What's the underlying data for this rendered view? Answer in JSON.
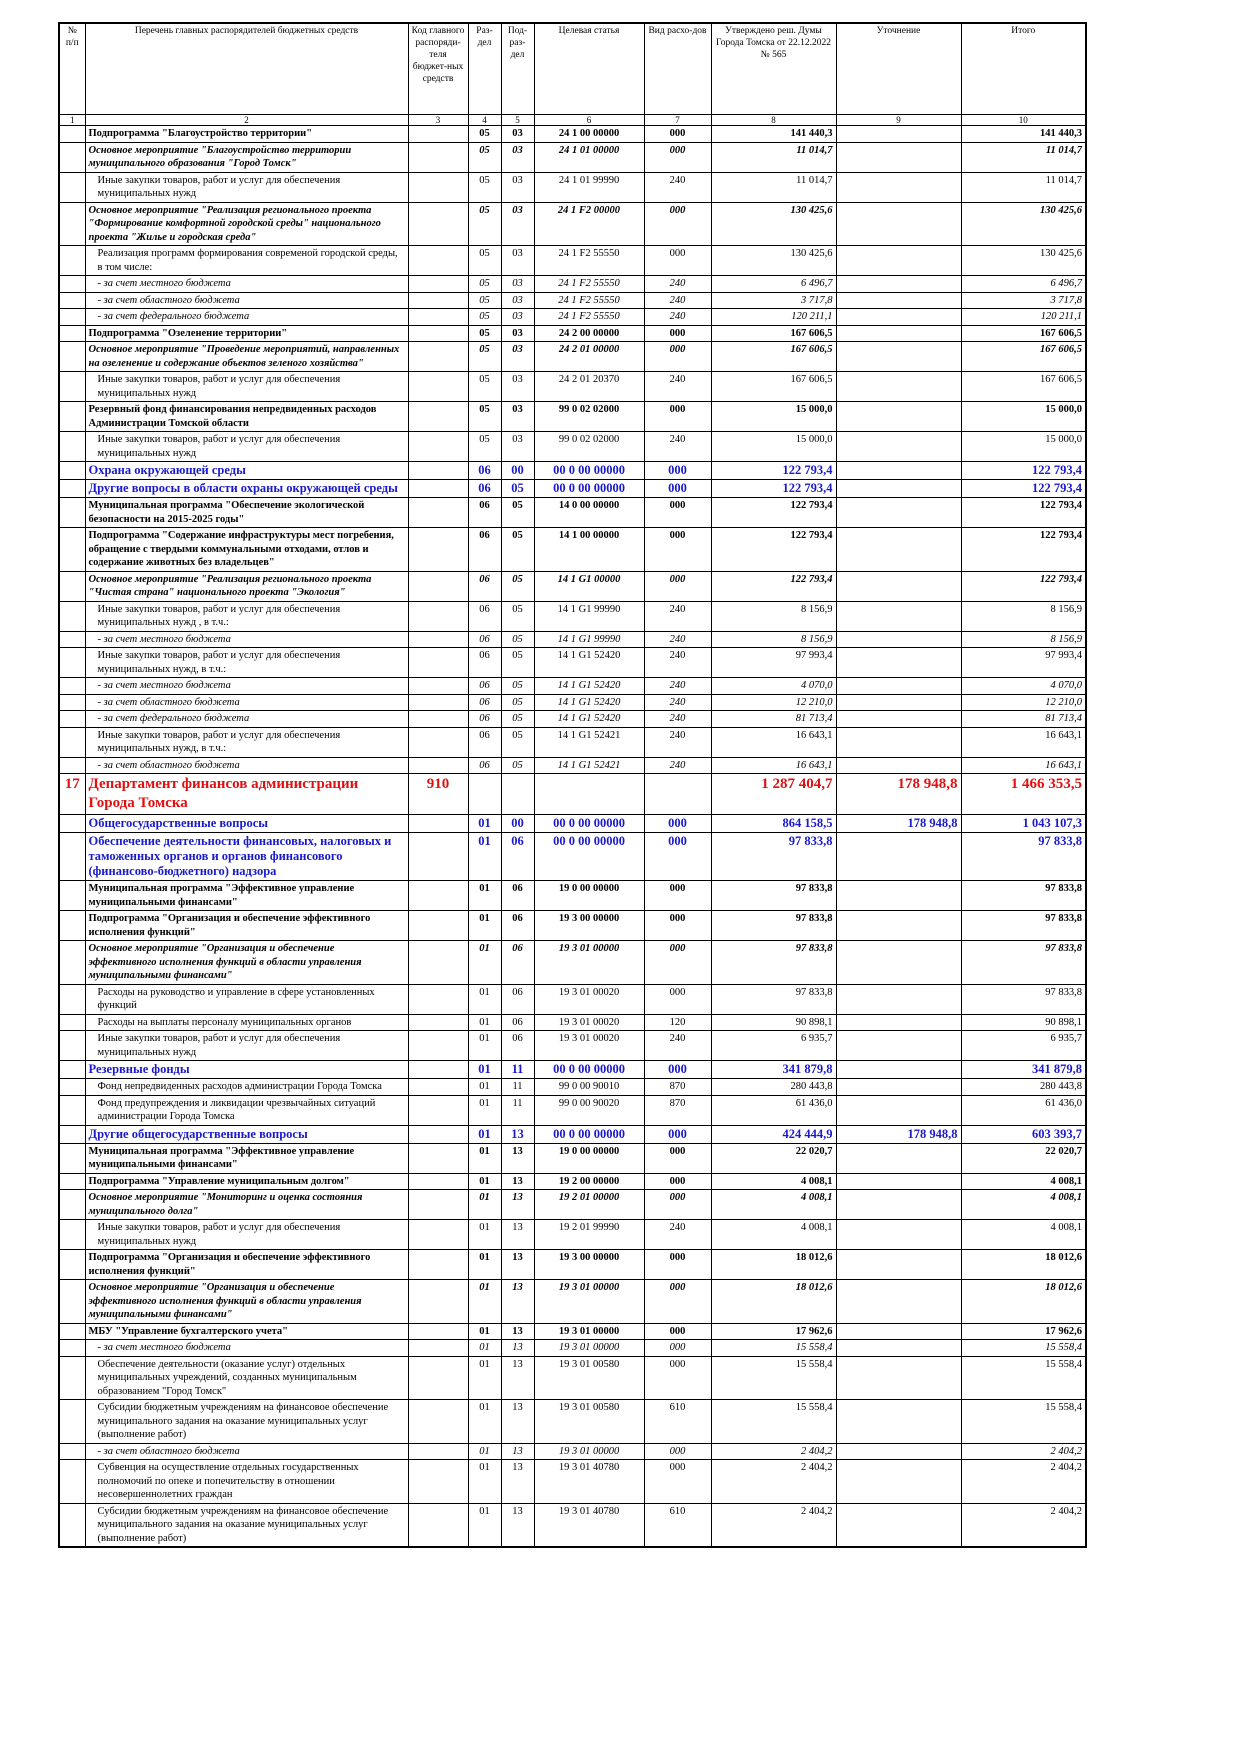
{
  "table": {
    "header": [
      "№ п/п",
      "Перечень главных распорядителей бюджетных средств",
      "Код главного распоряди-теля бюджет-ных средств",
      "Раз-дел",
      "Под-раз-дел",
      "Целевая статья",
      "Вид расхо-дов",
      "Утверждено реш. Думы Города Томска от 22.12.2022 № 565",
      "Уточнение",
      "Итого"
    ],
    "column_numbers": [
      "1",
      "2",
      "3",
      "4",
      "5",
      "6",
      "7",
      "8",
      "9",
      "10"
    ],
    "rows": [
      {
        "style": "b",
        "cells": [
          null,
          "Подпрограмма \"Благоустройство территории\"",
          null,
          "05",
          "03",
          "24 1 00 00000",
          "000",
          "141 440,3",
          null,
          "141 440,3"
        ]
      },
      {
        "style": "bi",
        "cells": [
          null,
          "Основное мероприятие \"Благоустройство территории муниципального образования \"Город Томск\"",
          null,
          "05",
          "03",
          "24 1 01 00000",
          "000",
          "11 014,7",
          null,
          "11 014,7"
        ]
      },
      {
        "style": "n",
        "cells": [
          null,
          "Иные закупки товаров, работ и услуг для обеспечения муниципальных нужд",
          null,
          "05",
          "03",
          "24 1 01 99990",
          "240",
          "11 014,7",
          null,
          "11 014,7"
        ]
      },
      {
        "style": "bi",
        "cells": [
          null,
          "Основное мероприятие \"Реализация регионального проекта \"Формирование комфортной городской среды\" национального проекта \"Жилье и городская среда\"",
          null,
          "05",
          "03",
          "24 1  F2 00000",
          "000",
          "130 425,6",
          null,
          "130 425,6"
        ]
      },
      {
        "style": "n",
        "cells": [
          null,
          "Реализация программ формирования современой городской среды, в том числе:",
          null,
          "05",
          "03",
          "24 1  F2 55550",
          "000",
          "130 425,6",
          null,
          "130 425,6"
        ]
      },
      {
        "style": "i",
        "cells": [
          null,
          "- за счет местного бюджета",
          null,
          "05",
          "03",
          "24 1  F2 55550",
          "240",
          "6 496,7",
          null,
          "6 496,7"
        ]
      },
      {
        "style": "i",
        "cells": [
          null,
          "- за счет областного бюджета",
          null,
          "05",
          "03",
          "24 1  F2 55550",
          "240",
          "3 717,8",
          null,
          "3 717,8"
        ]
      },
      {
        "style": "i",
        "cells": [
          null,
          "- за счет федерального бюджета",
          null,
          "05",
          "03",
          "24 1  F2 55550",
          "240",
          "120 211,1",
          null,
          "120 211,1"
        ]
      },
      {
        "style": "b",
        "cells": [
          null,
          "Подпрограмма \"Озеленение территории\"",
          null,
          "05",
          "03",
          "24 2 00 00000",
          "000",
          "167 606,5",
          null,
          "167 606,5"
        ]
      },
      {
        "style": "bi",
        "cells": [
          null,
          "Основное мероприятие \"Проведение мероприятий, направленных на озеленение и содержание объектов зеленого хозяйства\"",
          null,
          "05",
          "03",
          "24 2 01 00000",
          "000",
          "167 606,5",
          null,
          "167 606,5"
        ]
      },
      {
        "style": "n",
        "cells": [
          null,
          "Иные закупки товаров, работ и услуг для обеспечения муниципальных нужд",
          null,
          "05",
          "03",
          "24 2 01 20370",
          "240",
          "167 606,5",
          null,
          "167 606,5"
        ]
      },
      {
        "style": "b",
        "cells": [
          null,
          "Резервный фонд финансирования непредвиденных расходов Администрации Томской области",
          null,
          "05",
          "03",
          "99 0 02 02000",
          "000",
          "15 000,0",
          null,
          "15 000,0"
        ]
      },
      {
        "style": "n",
        "cells": [
          null,
          "Иные закупки товаров, работ и услуг для обеспечения муниципальных нужд",
          null,
          "05",
          "03",
          "99 0 02 02000",
          "240",
          "15 000,0",
          null,
          "15 000,0"
        ]
      },
      {
        "style": "blue",
        "cells": [
          null,
          "Охрана окружающей среды",
          null,
          "06",
          "00",
          "00 0 00 00000",
          "000",
          "122 793,4",
          null,
          "122 793,4"
        ]
      },
      {
        "style": "blue",
        "cells": [
          null,
          "Другие вопросы в области охраны окружающей среды",
          null,
          "06",
          "05",
          "00 0 00 00000",
          "000",
          "122 793,4",
          null,
          "122 793,4"
        ]
      },
      {
        "style": "b",
        "cells": [
          null,
          "Муниципальная программа \"Обеспечение экологической безопасности на 2015-2025 годы\"",
          null,
          "06",
          "05",
          "14 0 00 00000",
          "000",
          "122 793,4",
          null,
          "122 793,4"
        ]
      },
      {
        "style": "b",
        "cells": [
          null,
          "Подпрограмма \"Содержание инфраструктуры мест погребения, обращение с твердыми коммунальными отходами, отлов и содержание животных без владельцев\"",
          null,
          "06",
          "05",
          "14 1 00 00000",
          "000",
          "122 793,4",
          null,
          "122 793,4"
        ]
      },
      {
        "style": "bi",
        "cells": [
          null,
          "Основное мероприятие \"Реализация регионального проекта \"Чистая страна\" национального проекта \"Экология\"",
          null,
          "06",
          "05",
          "14 1 G1 00000",
          "000",
          "122 793,4",
          null,
          "122 793,4"
        ]
      },
      {
        "style": "n",
        "cells": [
          null,
          "Иные закупки товаров, работ и услуг для обеспечения муниципальных нужд , в т.ч.:",
          null,
          "06",
          "05",
          "14 1 G1 99990",
          "240",
          "8 156,9",
          null,
          "8 156,9"
        ]
      },
      {
        "style": "i",
        "cells": [
          null,
          "- за счет местного бюджета",
          null,
          "06",
          "05",
          "14 1 G1 99990",
          "240",
          "8 156,9",
          null,
          "8 156,9"
        ]
      },
      {
        "style": "n",
        "cells": [
          null,
          "Иные закупки товаров, работ и услуг для обеспечения муниципальных нужд, в т.ч.:",
          null,
          "06",
          "05",
          "14 1 G1 52420",
          "240",
          "97 993,4",
          null,
          "97 993,4"
        ]
      },
      {
        "style": "i",
        "cells": [
          null,
          "- за счет местного бюджета",
          null,
          "06",
          "05",
          "14 1 G1 52420",
          "240",
          "4 070,0",
          null,
          "4 070,0"
        ]
      },
      {
        "style": "i",
        "cells": [
          null,
          "- за счет областного бюджета",
          null,
          "06",
          "05",
          "14 1 G1 52420",
          "240",
          "12 210,0",
          null,
          "12 210,0"
        ]
      },
      {
        "style": "i",
        "cells": [
          null,
          "- за счет федерального бюджета",
          null,
          "06",
          "05",
          "14 1 G1 52420",
          "240",
          "81 713,4",
          null,
          "81 713,4"
        ]
      },
      {
        "style": "n",
        "cells": [
          null,
          "Иные закупки товаров, работ и услуг для обеспечения муниципальных нужд, в т.ч.:",
          null,
          "06",
          "05",
          "14 1 G1 52421",
          "240",
          "16 643,1",
          null,
          "16 643,1"
        ]
      },
      {
        "style": "i",
        "cells": [
          null,
          "- за счет областного бюджета",
          null,
          "06",
          "05",
          "14 1 G1 52421",
          "240",
          "16 643,1",
          null,
          "16 643,1"
        ]
      },
      {
        "style": "red",
        "cells": [
          "17",
          "Департамент финансов администрации Города Томска",
          "910",
          null,
          null,
          null,
          null,
          "1 287 404,7",
          "178 948,8",
          "1 466 353,5"
        ]
      },
      {
        "style": "blue",
        "cells": [
          null,
          "Общегосударственные вопросы",
          null,
          "01",
          "00",
          "00 0 00 00000",
          "000",
          "864 158,5",
          "178 948,8",
          "1 043 107,3"
        ]
      },
      {
        "style": "blue",
        "cells": [
          null,
          "Обеспечение деятельности финансовых, налоговых и таможенных органов и органов финансового (финансово-бюджетного) надзора",
          null,
          "01",
          "06",
          "00 0 00 00000",
          "000",
          "97 833,8",
          null,
          "97 833,8"
        ]
      },
      {
        "style": "b",
        "cells": [
          null,
          "Муниципальная программа \"Эффективное управление муниципальными финансами\"",
          null,
          "01",
          "06",
          "19 0 00 00000",
          "000",
          "97 833,8",
          null,
          "97 833,8"
        ]
      },
      {
        "style": "b",
        "cells": [
          null,
          "Подпрограмма \"Организация и обеспечение эффективного исполнения функций\"",
          null,
          "01",
          "06",
          "19 3 00 00000",
          "000",
          "97 833,8",
          null,
          "97 833,8"
        ]
      },
      {
        "style": "bi",
        "cells": [
          null,
          "Основное мероприятие \"Организация и обеспечение эффективного исполнения функций в области управления муниципальными финансами\"",
          null,
          "01",
          "06",
          "19 3 01 00000",
          "000",
          "97 833,8",
          null,
          "97 833,8"
        ]
      },
      {
        "style": "n",
        "cells": [
          null,
          "Расходы на руководство и управление в сфере установленных функций",
          null,
          "01",
          "06",
          "19 3 01 00020",
          "000",
          "97 833,8",
          null,
          "97 833,8"
        ]
      },
      {
        "style": "n",
        "cells": [
          null,
          "Расходы на выплаты персоналу муниципальных органов",
          null,
          "01",
          "06",
          "19 3 01 00020",
          "120",
          "90 898,1",
          null,
          "90 898,1"
        ]
      },
      {
        "style": "n",
        "cells": [
          null,
          "Иные закупки товаров, работ и услуг для обеспечения муниципальных нужд",
          null,
          "01",
          "06",
          "19 3 01 00020",
          "240",
          "6 935,7",
          null,
          "6 935,7"
        ]
      },
      {
        "style": "blue",
        "cells": [
          null,
          "Резервные фонды",
          null,
          "01",
          "11",
          "00 0 00 00000",
          "000",
          "341 879,8",
          null,
          "341 879,8"
        ]
      },
      {
        "style": "n",
        "cells": [
          null,
          "Фонд непредвиденных расходов администрации Города Томска",
          null,
          "01",
          "11",
          "99 0 00 90010",
          "870",
          "280 443,8",
          null,
          "280 443,8"
        ]
      },
      {
        "style": "n",
        "cells": [
          null,
          "Фонд предупреждения и ликвидации чрезвычайных ситуаций администрации Города Томска",
          null,
          "01",
          "11",
          "99 0 00 90020",
          "870",
          "61 436,0",
          null,
          "61 436,0"
        ]
      },
      {
        "style": "blue",
        "cells": [
          null,
          "Другие общегосударственные вопросы",
          null,
          "01",
          "13",
          "00 0 00 00000",
          "000",
          "424 444,9",
          "178 948,8",
          "603 393,7"
        ]
      },
      {
        "style": "b",
        "cells": [
          null,
          "Муниципальная программа \"Эффективное управление муниципальными финансами\"",
          null,
          "01",
          "13",
          "19 0 00 00000",
          "000",
          "22 020,7",
          null,
          "22 020,7"
        ]
      },
      {
        "style": "b",
        "cells": [
          null,
          "Подпрограмма \"Управление муниципальным долгом\"",
          null,
          "01",
          "13",
          "19 2 00 00000",
          "000",
          "4 008,1",
          null,
          "4 008,1"
        ]
      },
      {
        "style": "bi",
        "cells": [
          null,
          "Основное мероприятие \"Мониторинг и оценка состояния муниципального долга\"",
          null,
          "01",
          "13",
          "19 2 01 00000",
          "000",
          "4 008,1",
          null,
          "4 008,1"
        ]
      },
      {
        "style": "n",
        "cells": [
          null,
          "Иные закупки товаров, работ и услуг для обеспечения муниципальных нужд",
          null,
          "01",
          "13",
          "19 2 01 99990",
          "240",
          "4 008,1",
          null,
          "4 008,1"
        ]
      },
      {
        "style": "b",
        "cells": [
          null,
          "Подпрограмма \"Организация и обеспечение эффективного исполнения функций\"",
          null,
          "01",
          "13",
          "19 3 00 00000",
          "000",
          "18 012,6",
          null,
          "18 012,6"
        ]
      },
      {
        "style": "bi",
        "cells": [
          null,
          "Основное мероприятие \"Организация и обеспечение эффективного исполнения функций в области управления муниципальными финансами\"",
          null,
          "01",
          "13",
          "19 3 01 00000",
          "000",
          "18 012,6",
          null,
          "18 012,6"
        ]
      },
      {
        "style": "b",
        "cells": [
          null,
          "МБУ \"Управление бухгалтерского учета\"",
          null,
          "01",
          "13",
          "19 3 01 00000",
          "000",
          "17 962,6",
          null,
          "17 962,6"
        ]
      },
      {
        "style": "i",
        "cells": [
          null,
          "- за счет местного бюджета",
          null,
          "01",
          "13",
          "19 3 01 00000",
          "000",
          "15 558,4",
          null,
          "15 558,4"
        ]
      },
      {
        "style": "n",
        "cells": [
          null,
          "Обеспечение деятельности (оказание услуг) отдельных муниципальных учреждений, созданных муниципальным образованием \"Город Томск\"",
          null,
          "01",
          "13",
          "19 3 01 00580",
          "000",
          "15 558,4",
          null,
          "15 558,4"
        ]
      },
      {
        "style": "n",
        "cells": [
          null,
          "Субсидии бюджетным учреждениям на финансовое обеспечение муниципального задания на оказание муниципальных услуг (выполнение работ)",
          null,
          "01",
          "13",
          "19 3 01 00580",
          "610",
          "15 558,4",
          null,
          "15 558,4"
        ]
      },
      {
        "style": "i",
        "cells": [
          null,
          "- за счет областного бюджета",
          null,
          "01",
          "13",
          "19 3 01 00000",
          "000",
          "2 404,2",
          null,
          "2 404,2"
        ]
      },
      {
        "style": "n",
        "cells": [
          null,
          "Субвенция на осуществление отдельных государственных полномочий по опеке и попечительству в отношении несовершеннолетних граждан",
          null,
          "01",
          "13",
          "19 3 01 40780",
          "000",
          "2 404,2",
          null,
          "2 404,2"
        ]
      },
      {
        "style": "n",
        "cells": [
          null,
          "Субсидии бюджетным учреждениям на финансовое обеспечение муниципального задания на оказание муниципальных услуг (выполнение работ)",
          null,
          "01",
          "13",
          "19 3 01 40780",
          "610",
          "2 404,2",
          null,
          "2 404,2"
        ]
      }
    ]
  }
}
